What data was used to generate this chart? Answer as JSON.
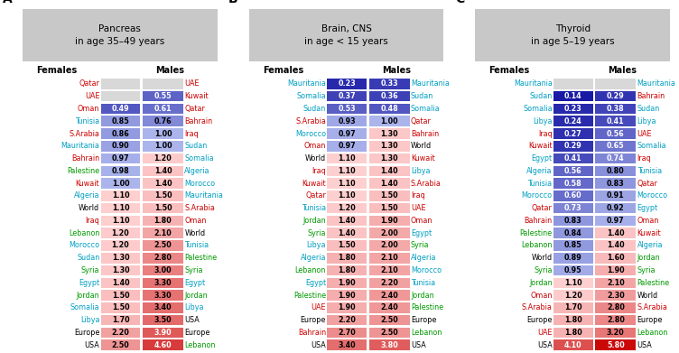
{
  "panels": [
    {
      "label": "A",
      "title": "Pancreas\nin age 35–49 years",
      "females": [
        {
          "country": "Qatar",
          "value": null,
          "color": "red"
        },
        {
          "country": "UAE",
          "value": null,
          "color": "red"
        },
        {
          "country": "Oman",
          "value": 0.49,
          "color": "red"
        },
        {
          "country": "Tunisia",
          "value": 0.85,
          "color": "cyan"
        },
        {
          "country": "S.Arabia",
          "value": 0.86,
          "color": "red"
        },
        {
          "country": "Mauritania",
          "value": 0.9,
          "color": "cyan"
        },
        {
          "country": "Bahrain",
          "value": 0.97,
          "color": "red"
        },
        {
          "country": "Palestine",
          "value": 0.98,
          "color": "green"
        },
        {
          "country": "Kuwait",
          "value": 1.0,
          "color": "red"
        },
        {
          "country": "Algeria",
          "value": 1.1,
          "color": "cyan"
        },
        {
          "country": "World",
          "value": 1.1,
          "color": "black"
        },
        {
          "country": "Iraq",
          "value": 1.1,
          "color": "red"
        },
        {
          "country": "Lebanon",
          "value": 1.2,
          "color": "green"
        },
        {
          "country": "Morocco",
          "value": 1.2,
          "color": "cyan"
        },
        {
          "country": "Sudan",
          "value": 1.3,
          "color": "cyan"
        },
        {
          "country": "Syria",
          "value": 1.3,
          "color": "green"
        },
        {
          "country": "Egypt",
          "value": 1.4,
          "color": "cyan"
        },
        {
          "country": "Jordan",
          "value": 1.5,
          "color": "green"
        },
        {
          "country": "Somalia",
          "value": 1.5,
          "color": "cyan"
        },
        {
          "country": "Libya",
          "value": 1.7,
          "color": "cyan"
        },
        {
          "country": "Europe",
          "value": 2.2,
          "color": "black"
        },
        {
          "country": "USA",
          "value": 2.5,
          "color": "black"
        }
      ],
      "males": [
        {
          "country": "UAE",
          "value": null,
          "color": "red"
        },
        {
          "country": "Kuwait",
          "value": 0.55,
          "color": "red"
        },
        {
          "country": "Qatar",
          "value": 0.61,
          "color": "red"
        },
        {
          "country": "Bahrain",
          "value": 0.76,
          "color": "red"
        },
        {
          "country": "Iraq",
          "value": 1.0,
          "color": "red"
        },
        {
          "country": "Sudan",
          "value": 1.0,
          "color": "cyan"
        },
        {
          "country": "Somalia",
          "value": 1.2,
          "color": "cyan"
        },
        {
          "country": "Algeria",
          "value": 1.4,
          "color": "cyan"
        },
        {
          "country": "Morocco",
          "value": 1.4,
          "color": "cyan"
        },
        {
          "country": "Mauritania",
          "value": 1.5,
          "color": "cyan"
        },
        {
          "country": "S.Arabia",
          "value": 1.5,
          "color": "red"
        },
        {
          "country": "Oman",
          "value": 1.8,
          "color": "red"
        },
        {
          "country": "World",
          "value": 2.1,
          "color": "black"
        },
        {
          "country": "Tunisia",
          "value": 2.5,
          "color": "cyan"
        },
        {
          "country": "Palestine",
          "value": 2.8,
          "color": "green"
        },
        {
          "country": "Syria",
          "value": 3.0,
          "color": "green"
        },
        {
          "country": "Egypt",
          "value": 3.3,
          "color": "cyan"
        },
        {
          "country": "Jordan",
          "value": 3.3,
          "color": "green"
        },
        {
          "country": "Libya",
          "value": 3.4,
          "color": "cyan"
        },
        {
          "country": "USA",
          "value": 3.5,
          "color": "black"
        },
        {
          "country": "Europe",
          "value": 3.9,
          "color": "black"
        },
        {
          "country": "Lebanon",
          "value": 4.6,
          "color": "green"
        }
      ]
    },
    {
      "label": "B",
      "title": "Brain, CNS\nin age < 15 years",
      "females": [
        {
          "country": "Mauritania",
          "value": 0.23,
          "color": "cyan"
        },
        {
          "country": "Somalia",
          "value": 0.37,
          "color": "cyan"
        },
        {
          "country": "Sudan",
          "value": 0.53,
          "color": "cyan"
        },
        {
          "country": "S.Arabia",
          "value": 0.93,
          "color": "red"
        },
        {
          "country": "Morocco",
          "value": 0.97,
          "color": "cyan"
        },
        {
          "country": "Oman",
          "value": 0.97,
          "color": "red"
        },
        {
          "country": "World",
          "value": 1.1,
          "color": "black"
        },
        {
          "country": "Iraq",
          "value": 1.1,
          "color": "red"
        },
        {
          "country": "Kuwait",
          "value": 1.1,
          "color": "red"
        },
        {
          "country": "Qatar",
          "value": 1.1,
          "color": "red"
        },
        {
          "country": "Tunisia",
          "value": 1.2,
          "color": "cyan"
        },
        {
          "country": "Jordan",
          "value": 1.4,
          "color": "green"
        },
        {
          "country": "Syria",
          "value": 1.4,
          "color": "green"
        },
        {
          "country": "Libya",
          "value": 1.5,
          "color": "cyan"
        },
        {
          "country": "Algeria",
          "value": 1.8,
          "color": "cyan"
        },
        {
          "country": "Lebanon",
          "value": 1.8,
          "color": "green"
        },
        {
          "country": "Egypt",
          "value": 1.9,
          "color": "cyan"
        },
        {
          "country": "Palestine",
          "value": 1.9,
          "color": "green"
        },
        {
          "country": "UAE",
          "value": 1.9,
          "color": "red"
        },
        {
          "country": "Europe",
          "value": 2.2,
          "color": "black"
        },
        {
          "country": "Bahrain",
          "value": 2.7,
          "color": "red"
        },
        {
          "country": "USA",
          "value": 3.4,
          "color": "black"
        }
      ],
      "males": [
        {
          "country": "Mauritania",
          "value": 0.33,
          "color": "cyan"
        },
        {
          "country": "Sudan",
          "value": 0.36,
          "color": "cyan"
        },
        {
          "country": "Somalia",
          "value": 0.48,
          "color": "cyan"
        },
        {
          "country": "Qatar",
          "value": 1.0,
          "color": "red"
        },
        {
          "country": "Bahrain",
          "value": 1.3,
          "color": "red"
        },
        {
          "country": "World",
          "value": 1.3,
          "color": "black"
        },
        {
          "country": "Kuwait",
          "value": 1.3,
          "color": "red"
        },
        {
          "country": "Libya",
          "value": 1.4,
          "color": "cyan"
        },
        {
          "country": "S.Arabia",
          "value": 1.4,
          "color": "red"
        },
        {
          "country": "Iraq",
          "value": 1.5,
          "color": "red"
        },
        {
          "country": "UAE",
          "value": 1.5,
          "color": "red"
        },
        {
          "country": "Oman",
          "value": 1.9,
          "color": "red"
        },
        {
          "country": "Egypt",
          "value": 2.0,
          "color": "cyan"
        },
        {
          "country": "Syria",
          "value": 2.0,
          "color": "green"
        },
        {
          "country": "Algeria",
          "value": 2.1,
          "color": "cyan"
        },
        {
          "country": "Morocco",
          "value": 2.1,
          "color": "cyan"
        },
        {
          "country": "Tunisia",
          "value": 2.2,
          "color": "cyan"
        },
        {
          "country": "Jordan",
          "value": 2.4,
          "color": "green"
        },
        {
          "country": "Palestine",
          "value": 2.4,
          "color": "green"
        },
        {
          "country": "Europe",
          "value": 2.5,
          "color": "black"
        },
        {
          "country": "Lebanon",
          "value": 2.5,
          "color": "green"
        },
        {
          "country": "USA",
          "value": 3.8,
          "color": "black"
        }
      ]
    },
    {
      "label": "C",
      "title": "Thyroid\nin age 5–19 years",
      "females": [
        {
          "country": "Mauritania",
          "value": null,
          "color": "cyan"
        },
        {
          "country": "Sudan",
          "value": 0.14,
          "color": "cyan"
        },
        {
          "country": "Somalia",
          "value": 0.23,
          "color": "cyan"
        },
        {
          "country": "Libya",
          "value": 0.24,
          "color": "cyan"
        },
        {
          "country": "Iraq",
          "value": 0.27,
          "color": "red"
        },
        {
          "country": "Kuwait",
          "value": 0.29,
          "color": "red"
        },
        {
          "country": "Egypt",
          "value": 0.41,
          "color": "cyan"
        },
        {
          "country": "Algeria",
          "value": 0.56,
          "color": "cyan"
        },
        {
          "country": "Tunisia",
          "value": 0.58,
          "color": "cyan"
        },
        {
          "country": "Morocco",
          "value": 0.6,
          "color": "cyan"
        },
        {
          "country": "Qatar",
          "value": 0.73,
          "color": "red"
        },
        {
          "country": "Bahrain",
          "value": 0.83,
          "color": "red"
        },
        {
          "country": "Palestine",
          "value": 0.84,
          "color": "green"
        },
        {
          "country": "Lebanon",
          "value": 0.85,
          "color": "green"
        },
        {
          "country": "World",
          "value": 0.89,
          "color": "black"
        },
        {
          "country": "Syria",
          "value": 0.95,
          "color": "green"
        },
        {
          "country": "Jordan",
          "value": 1.1,
          "color": "green"
        },
        {
          "country": "Oman",
          "value": 1.2,
          "color": "red"
        },
        {
          "country": "S.Arabia",
          "value": 1.7,
          "color": "red"
        },
        {
          "country": "Europe",
          "value": 1.8,
          "color": "black"
        },
        {
          "country": "UAE",
          "value": 1.8,
          "color": "red"
        },
        {
          "country": "USA",
          "value": 4.1,
          "color": "black"
        }
      ],
      "males": [
        {
          "country": "Mauritania",
          "value": null,
          "color": "cyan"
        },
        {
          "country": "Bahrain",
          "value": 0.29,
          "color": "red"
        },
        {
          "country": "Sudan",
          "value": 0.38,
          "color": "cyan"
        },
        {
          "country": "Libya",
          "value": 0.41,
          "color": "cyan"
        },
        {
          "country": "UAE",
          "value": 0.56,
          "color": "red"
        },
        {
          "country": "Somalia",
          "value": 0.65,
          "color": "cyan"
        },
        {
          "country": "Iraq",
          "value": 0.74,
          "color": "red"
        },
        {
          "country": "Tunisia",
          "value": 0.8,
          "color": "cyan"
        },
        {
          "country": "Qatar",
          "value": 0.83,
          "color": "red"
        },
        {
          "country": "Morocco",
          "value": 0.91,
          "color": "cyan"
        },
        {
          "country": "Egypt",
          "value": 0.92,
          "color": "cyan"
        },
        {
          "country": "Oman",
          "value": 0.97,
          "color": "red"
        },
        {
          "country": "Kuwait",
          "value": 1.4,
          "color": "red"
        },
        {
          "country": "Algeria",
          "value": 1.4,
          "color": "cyan"
        },
        {
          "country": "Jordan",
          "value": 1.6,
          "color": "green"
        },
        {
          "country": "Syria",
          "value": 1.9,
          "color": "green"
        },
        {
          "country": "Palestine",
          "value": 2.1,
          "color": "green"
        },
        {
          "country": "World",
          "value": 2.3,
          "color": "black"
        },
        {
          "country": "S.Arabia",
          "value": 2.8,
          "color": "red"
        },
        {
          "country": "Europe",
          "value": 2.8,
          "color": "black"
        },
        {
          "country": "Lebanon",
          "value": 3.2,
          "color": "green"
        },
        {
          "country": "USA",
          "value": 5.8,
          "color": "black"
        }
      ]
    }
  ],
  "color_map": {
    "red": "#cc0000",
    "cyan": "#009fc2",
    "green": "#009900",
    "black": "#000000"
  },
  "null_bg": "#d8d8d8",
  "title_bg": "#c8c8c8",
  "blue_dark": [
    0,
    0,
    153
  ],
  "blue_light": [
    180,
    190,
    240
  ],
  "red_light": [
    255,
    210,
    210
  ],
  "red_dark": [
    200,
    0,
    0
  ],
  "blue_threshold": 1.05,
  "red_max": 6.0
}
